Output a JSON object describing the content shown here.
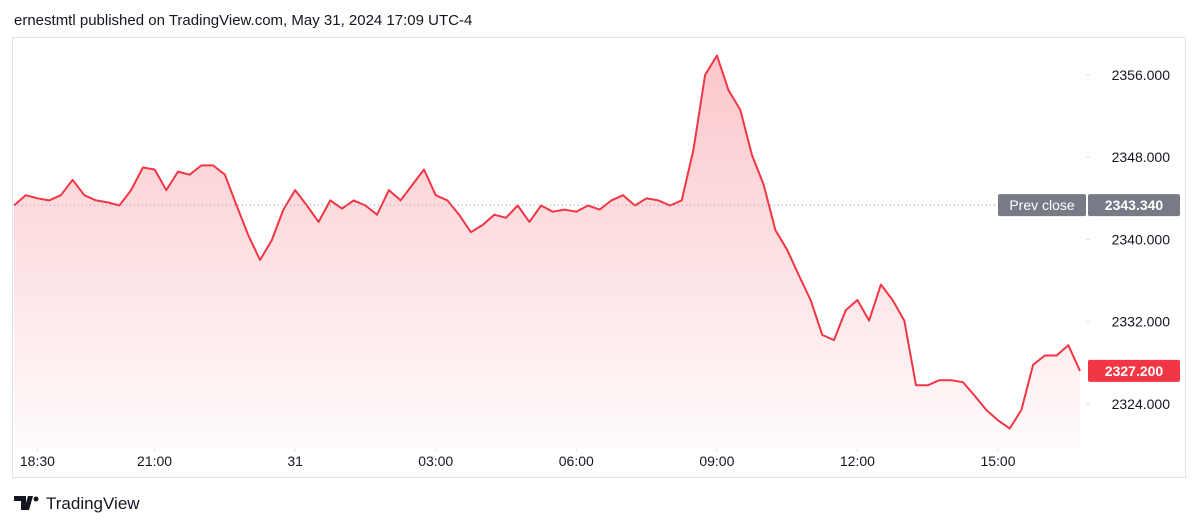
{
  "header": "ernestmtl published on TradingView.com, May 31, 2024 17:09 UTC-4",
  "brand": "TradingView",
  "chart_data": {
    "type": "area",
    "color": "#f23645",
    "x": [
      "18:00",
      "18:15",
      "18:30",
      "18:45",
      "19:00",
      "19:15",
      "19:30",
      "19:45",
      "20:00",
      "20:15",
      "20:30",
      "20:45",
      "21:00",
      "21:15",
      "21:30",
      "21:45",
      "22:00",
      "22:15",
      "22:30",
      "22:45",
      "23:00",
      "23:15",
      "23:30",
      "23:45",
      "00:00",
      "00:15",
      "00:30",
      "00:45",
      "01:00",
      "01:15",
      "01:30",
      "01:45",
      "02:00",
      "02:15",
      "02:30",
      "02:45",
      "03:00",
      "03:15",
      "03:30",
      "03:45",
      "04:00",
      "04:15",
      "04:30",
      "04:45",
      "05:00",
      "05:15",
      "05:30",
      "05:45",
      "06:00",
      "06:15",
      "06:30",
      "06:45",
      "07:00",
      "07:15",
      "07:30",
      "07:45",
      "08:00",
      "08:15",
      "08:30",
      "08:45",
      "09:00",
      "09:15",
      "09:30",
      "09:45",
      "10:00",
      "10:15",
      "10:30",
      "10:45",
      "11:00",
      "11:15",
      "11:30",
      "11:45",
      "12:00",
      "12:15",
      "12:30",
      "12:45",
      "13:00",
      "13:15",
      "13:30",
      "13:45",
      "14:00",
      "14:15",
      "14:30",
      "14:45",
      "15:00",
      "15:15",
      "15:30",
      "15:45",
      "16:00",
      "16:15",
      "16:30",
      "16:45"
    ],
    "values": [
      2343.3,
      2344.3,
      2344.0,
      2343.8,
      2344.3,
      2345.8,
      2344.3,
      2343.8,
      2343.6,
      2343.3,
      2344.8,
      2347.0,
      2346.8,
      2344.8,
      2346.6,
      2346.3,
      2347.2,
      2347.2,
      2346.3,
      2343.3,
      2340.4,
      2338.0,
      2339.9,
      2342.9,
      2344.8,
      2343.3,
      2341.7,
      2343.8,
      2343.0,
      2343.8,
      2343.3,
      2342.4,
      2344.8,
      2343.8,
      2345.3,
      2346.8,
      2344.3,
      2343.8,
      2342.4,
      2340.7,
      2341.4,
      2342.4,
      2342.1,
      2343.3,
      2341.7,
      2343.3,
      2342.7,
      2342.9,
      2342.7,
      2343.3,
      2342.9,
      2343.8,
      2344.3,
      2343.3,
      2344.0,
      2343.8,
      2343.3,
      2343.8,
      2348.7,
      2356.0,
      2357.9,
      2354.5,
      2352.6,
      2348.2,
      2345.3,
      2340.9,
      2339.0,
      2336.5,
      2334.1,
      2330.7,
      2330.2,
      2333.1,
      2334.1,
      2332.1,
      2335.6,
      2334.1,
      2332.1,
      2325.8,
      2325.8,
      2326.3,
      2326.3,
      2326.1,
      2324.8,
      2323.4,
      2322.4,
      2321.6,
      2323.4,
      2327.8,
      2328.7,
      2328.7,
      2329.7,
      2327.2
    ],
    "ylim": [
      2319.7,
      2359.6
    ],
    "yticks": [
      {
        "value": 2324,
        "label": "2324.000"
      },
      {
        "value": 2332,
        "label": "2332.000"
      },
      {
        "value": 2340,
        "label": "2340.000"
      },
      {
        "value": 2348,
        "label": "2348.000"
      },
      {
        "value": 2356,
        "label": "2356.000"
      }
    ],
    "xticks": [
      "18:30",
      "21:00",
      {
        "value": "00:00",
        "label": "31"
      },
      "03:00",
      "06:00",
      "09:00",
      "12:00",
      "15:00"
    ],
    "prev_close": {
      "label": "Prev close",
      "value": 2343.34,
      "value_label": "2343.340"
    },
    "last": {
      "value": 2327.2,
      "value_label": "2327.200"
    }
  }
}
